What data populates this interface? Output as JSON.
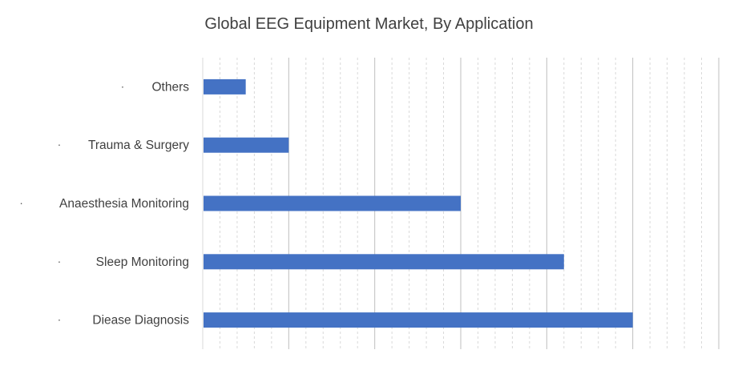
{
  "chart_data": {
    "type": "bar",
    "orientation": "horizontal",
    "title": "Global EEG Equipment Market, By Application",
    "categories": [
      "Others",
      "Trauma & Surgery",
      "Anaesthesia Monitoring",
      "Sleep Monitoring",
      "Diease Diagnosis"
    ],
    "values": [
      1,
      2,
      6,
      8.4,
      10
    ],
    "xlim": [
      0,
      12
    ],
    "grid": "vertical",
    "legend": "none",
    "bullet": "·",
    "colors": {
      "bar": "#4472c4",
      "grid": "#d9d9d9",
      "text": "#404040"
    }
  }
}
